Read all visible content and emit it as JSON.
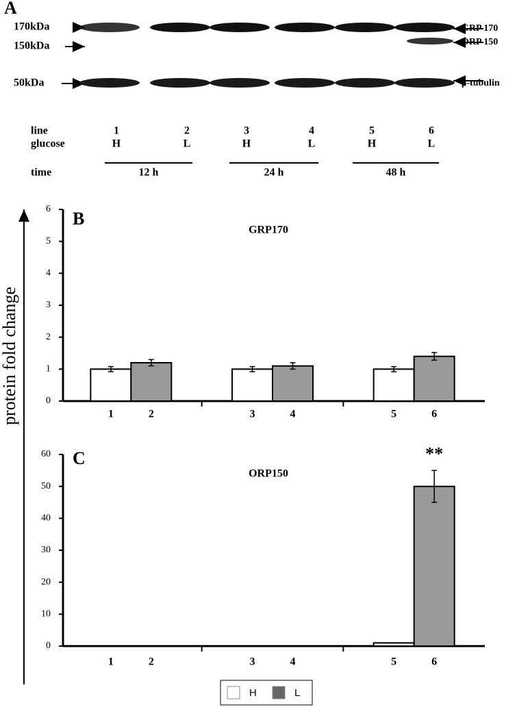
{
  "panel_a": {
    "label": "A",
    "markers": [
      "170kDa",
      "150kDa",
      "50kDa"
    ],
    "bands": [
      "GRP 170",
      "ORP 150",
      "β-tubulin"
    ],
    "rows": [
      "line",
      "glucose",
      "time"
    ],
    "lines": [
      "1",
      "2",
      "3",
      "4",
      "5",
      "6"
    ],
    "glucose": [
      "H",
      "L",
      "H",
      "L",
      "H",
      "L"
    ],
    "times": [
      "12 h",
      "24 h",
      "48 h"
    ]
  },
  "y_label": "protein fold change",
  "chart_data": [
    {
      "type": "bar",
      "panel": "B",
      "title": "GRP170",
      "ylim": [
        0,
        6
      ],
      "yticks": [
        0,
        1,
        2,
        3,
        4,
        5,
        6
      ],
      "series": [
        {
          "color": "#ffffff",
          "labels": [
            "1",
            "3",
            "5"
          ],
          "values": [
            1,
            1,
            1
          ],
          "errors": [
            0.08,
            0.08,
            0.08
          ]
        },
        {
          "color": "#999999",
          "labels": [
            "2",
            "4",
            "6"
          ],
          "values": [
            1.2,
            1.1,
            1.4
          ],
          "errors": [
            0.1,
            0.1,
            0.12
          ]
        }
      ]
    },
    {
      "type": "bar",
      "panel": "C",
      "title": "ORP150",
      "annotation": "**",
      "ylim": [
        0,
        60
      ],
      "yticks": [
        0,
        10,
        20,
        30,
        40,
        50,
        60
      ],
      "series": [
        {
          "name": "H",
          "color": "#ffffff",
          "labels": [
            "1",
            "3",
            "5"
          ],
          "values": [
            0,
            0,
            1
          ],
          "errors": [
            0,
            0,
            0
          ]
        },
        {
          "name": "L",
          "color": "#999999",
          "labels": [
            "2",
            "4",
            "6"
          ],
          "values": [
            0,
            0,
            50
          ],
          "errors": [
            0,
            0,
            5
          ]
        }
      ]
    }
  ]
}
